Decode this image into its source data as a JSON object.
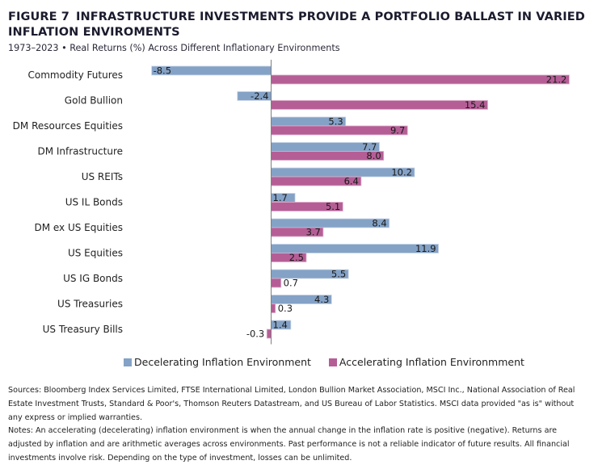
{
  "header": {
    "figure_label": "FIGURE 7",
    "title": "INFRASTRUCTURE INVESTMENTS PROVIDE A PORTFOLIO BALLAST IN VARIED INFLATION ENVIROMENTS",
    "subtitle": "1973–2023 • Real Returns (%) Across Different Inflationary Environments"
  },
  "chart_data": {
    "type": "bar",
    "orientation": "horizontal",
    "title": "INFRASTRUCTURE INVESTMENTS PROVIDE A PORTFOLIO BALLAST IN VARIED INFLATION ENVIROMENTS",
    "subtitle": "1973–2023 • Real Returns (%) Across Different Inflationary Environments",
    "xlabel": "",
    "ylabel": "",
    "xlim": [
      -8.5,
      21.2
    ],
    "grid": false,
    "legend_position": "bottom",
    "categories": [
      "Commodity Futures",
      "Gold Bullion",
      "DM Resources Equities",
      "DM Infrastructure",
      "US REITs",
      "US IL Bonds",
      "DM ex US Equities",
      "US Equities",
      "US IG Bonds",
      "US Treasuries",
      "US Treasury Bills"
    ],
    "series": [
      {
        "name": "Decelerating Inflation Environment",
        "color": "#84A2C6",
        "values": [
          -8.5,
          -2.4,
          5.3,
          7.7,
          10.2,
          1.7,
          8.4,
          11.9,
          5.5,
          4.3,
          1.4
        ],
        "labels": [
          "-8.5",
          "-2.4",
          "5.3",
          "7.7",
          "10.2",
          "1.7",
          "8.4",
          "11.9",
          "5.5",
          "4.3",
          "1.4"
        ]
      },
      {
        "name": "Accelerating Inflation Environmment",
        "color": "#B55E96",
        "values": [
          21.2,
          15.4,
          9.7,
          8.0,
          6.4,
          5.1,
          3.7,
          2.5,
          0.7,
          0.3,
          -0.3
        ],
        "labels": [
          "21.2",
          "15.4",
          "9.7",
          "8.0",
          "6.4",
          "5.1",
          "3.7",
          "2.5",
          "0.7",
          "0.3",
          "-0.3"
        ]
      }
    ]
  },
  "legend": {
    "items": [
      {
        "label": "Decelerating Inflation Environment",
        "color": "#84A2C6"
      },
      {
        "label": "Accelerating Inflation Environmment",
        "color": "#B55E96"
      }
    ]
  },
  "footer": {
    "sources": "Sources: Bloomberg Index Services Limited, FTSE International Limited, London Bullion Market Association, MSCI Inc., National Association of Real Estate Investment Trusts, Standard & Poor's, Thomson Reuters Datastream, and US Bureau of Labor Statistics. MSCI data provided \"as is\" without any express or implied warranties.",
    "notes": "Notes: An accelerating (decelerating) inflation environment is when the annual change in the inflation rate is positive (negative). Returns are adjusted by inflation and are arithmetic averages across environments. Past performance is not a reliable indicator of future results. All financial investments involve risk. Depending on the type of investment, losses can be unlimited."
  }
}
